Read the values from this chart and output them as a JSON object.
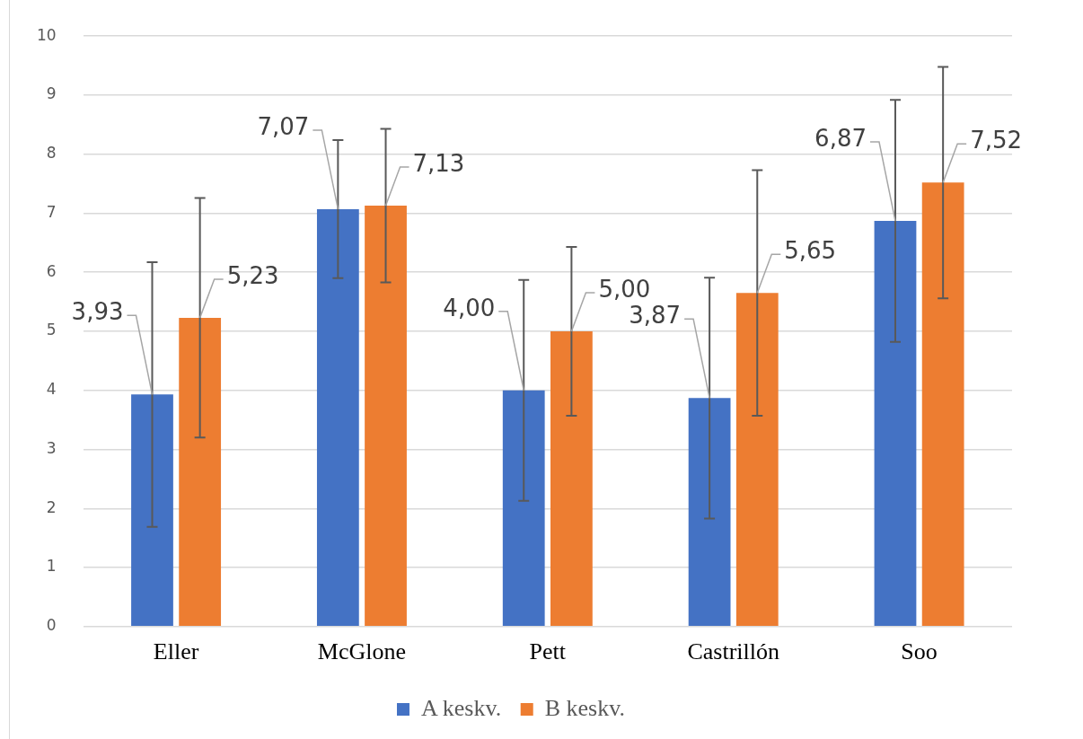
{
  "chart_data": {
    "type": "bar",
    "categories": [
      "Eller",
      "McGlone",
      "Pett",
      "Castrillón",
      "Soo"
    ],
    "series": [
      {
        "name": "A keskv.",
        "color": "#4472c4",
        "values": [
          3.93,
          7.07,
          4.0,
          3.87,
          6.87
        ],
        "errors": [
          2.24,
          1.17,
          1.87,
          2.04,
          2.05
        ],
        "value_labels": [
          "3,93",
          "7,07",
          "4,00",
          "3,87",
          "6,87"
        ]
      },
      {
        "name": "B keskv.",
        "color": "#ed7d31",
        "values": [
          5.23,
          7.13,
          5.0,
          5.65,
          7.52
        ],
        "errors": [
          2.03,
          1.3,
          1.43,
          2.08,
          1.96
        ],
        "value_labels": [
          "5,23",
          "7,13",
          "5,00",
          "5,65",
          "7,52"
        ]
      }
    ],
    "ylim": [
      0,
      10
    ],
    "yticks": [
      0,
      1,
      2,
      3,
      4,
      5,
      6,
      7,
      8,
      9,
      10
    ],
    "grid": "y",
    "legend": "bottom"
  }
}
